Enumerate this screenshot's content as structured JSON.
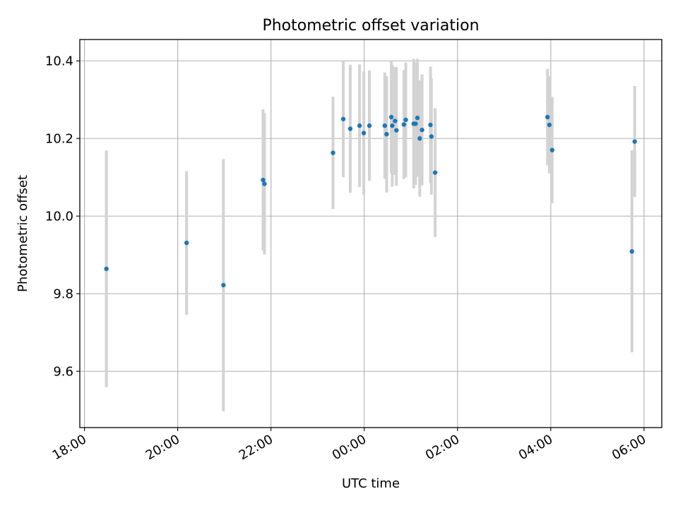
{
  "chart_data": {
    "type": "scatter",
    "title": "Photometric offset variation",
    "xlabel": "UTC time",
    "ylabel": "Photometric offset",
    "x_unit": "hours since 18:00 UTC",
    "xlim": [
      -0.1,
      12.38
    ],
    "ylim": [
      9.455,
      10.455
    ],
    "x_ticks": [
      0,
      2,
      4,
      6,
      8,
      10,
      12
    ],
    "x_tick_labels": [
      "18:00",
      "20:00",
      "22:00",
      "00:00",
      "02:00",
      "04:00",
      "06:00"
    ],
    "y_ticks": [
      9.6,
      9.8,
      10.0,
      10.2,
      10.4
    ],
    "y_tick_labels": [
      "9.6",
      "9.8",
      "10.0",
      "10.2",
      "10.4"
    ],
    "grid": true,
    "colors": {
      "points": "#1f77b4",
      "errorbars": "#d3d3d3",
      "grid": "#b0b0b0"
    },
    "series": [
      {
        "points": [
          {
            "x": 0.47,
            "y": 9.864,
            "lo": 9.559,
            "hi": 10.169
          },
          {
            "x": 2.19,
            "y": 9.931,
            "lo": 9.746,
            "hi": 10.116
          },
          {
            "x": 2.98,
            "y": 9.822,
            "lo": 9.497,
            "hi": 10.147
          },
          {
            "x": 3.83,
            "y": 10.093,
            "lo": 9.911,
            "hi": 10.275
          },
          {
            "x": 3.86,
            "y": 10.083,
            "lo": 9.901,
            "hi": 10.265
          },
          {
            "x": 5.33,
            "y": 10.163,
            "lo": 10.018,
            "hi": 10.308
          },
          {
            "x": 5.55,
            "y": 10.25,
            "lo": 10.1,
            "hi": 10.4
          },
          {
            "x": 5.7,
            "y": 10.225,
            "lo": 10.06,
            "hi": 10.39
          },
          {
            "x": 5.9,
            "y": 10.233,
            "lo": 10.075,
            "hi": 10.391
          },
          {
            "x": 5.99,
            "y": 10.214,
            "lo": 10.055,
            "hi": 10.373
          },
          {
            "x": 6.11,
            "y": 10.233,
            "lo": 10.091,
            "hi": 10.375
          },
          {
            "x": 6.44,
            "y": 10.233,
            "lo": 10.096,
            "hi": 10.37
          },
          {
            "x": 6.48,
            "y": 10.211,
            "lo": 10.061,
            "hi": 10.361
          },
          {
            "x": 6.58,
            "y": 10.255,
            "lo": 10.11,
            "hi": 10.4
          },
          {
            "x": 6.6,
            "y": 10.233,
            "lo": 10.076,
            "hi": 10.39
          },
          {
            "x": 6.66,
            "y": 10.245,
            "lo": 10.106,
            "hi": 10.384
          },
          {
            "x": 6.69,
            "y": 10.221,
            "lo": 10.078,
            "hi": 10.384
          },
          {
            "x": 6.85,
            "y": 10.236,
            "lo": 10.096,
            "hi": 10.376
          },
          {
            "x": 6.89,
            "y": 10.248,
            "lo": 10.1,
            "hi": 10.396
          },
          {
            "x": 7.06,
            "y": 10.238,
            "lo": 10.071,
            "hi": 10.405
          },
          {
            "x": 7.1,
            "y": 10.238,
            "lo": 10.08,
            "hi": 10.396
          },
          {
            "x": 7.14,
            "y": 10.253,
            "lo": 10.101,
            "hi": 10.405
          },
          {
            "x": 7.19,
            "y": 10.2,
            "lo": 10.05,
            "hi": 10.35
          },
          {
            "x": 7.24,
            "y": 10.222,
            "lo": 10.079,
            "hi": 10.365
          },
          {
            "x": 7.42,
            "y": 10.235,
            "lo": 10.085,
            "hi": 10.385
          },
          {
            "x": 7.44,
            "y": 10.205,
            "lo": 10.055,
            "hi": 10.355
          },
          {
            "x": 7.52,
            "y": 10.112,
            "lo": 9.946,
            "hi": 10.278
          },
          {
            "x": 9.93,
            "y": 10.255,
            "lo": 10.131,
            "hi": 10.379
          },
          {
            "x": 9.97,
            "y": 10.235,
            "lo": 10.11,
            "hi": 10.36
          },
          {
            "x": 10.03,
            "y": 10.17,
            "lo": 10.033,
            "hi": 10.307
          },
          {
            "x": 11.74,
            "y": 9.909,
            "lo": 9.649,
            "hi": 10.169
          },
          {
            "x": 11.8,
            "y": 10.192,
            "lo": 10.049,
            "hi": 10.335
          }
        ]
      }
    ]
  }
}
